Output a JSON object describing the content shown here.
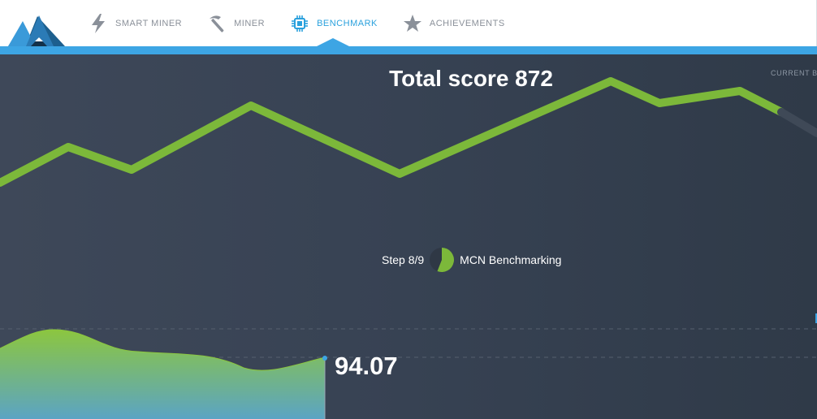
{
  "nav": {
    "items": [
      {
        "label": "SMART MINER",
        "icon": "lightning-icon",
        "active": false
      },
      {
        "label": "MINER",
        "icon": "pickaxe-icon",
        "active": false
      },
      {
        "label": "BENCHMARK",
        "icon": "chip-icon",
        "active": true
      },
      {
        "label": "ACHIEVEMENTS",
        "icon": "star-icon",
        "active": false
      }
    ]
  },
  "benchmark": {
    "total_score_text": "Total score 872",
    "current_label": "CURRENT BE",
    "step_text": "Step 8/9",
    "step_progress": 0.56,
    "step_name": "MCN Benchmarking",
    "current_value": "94.07"
  },
  "colors": {
    "accent": "#3da5e4",
    "line": "#7cb83a",
    "area_top": "#8cc63f",
    "area_bottom": "#5ba4c4"
  }
}
